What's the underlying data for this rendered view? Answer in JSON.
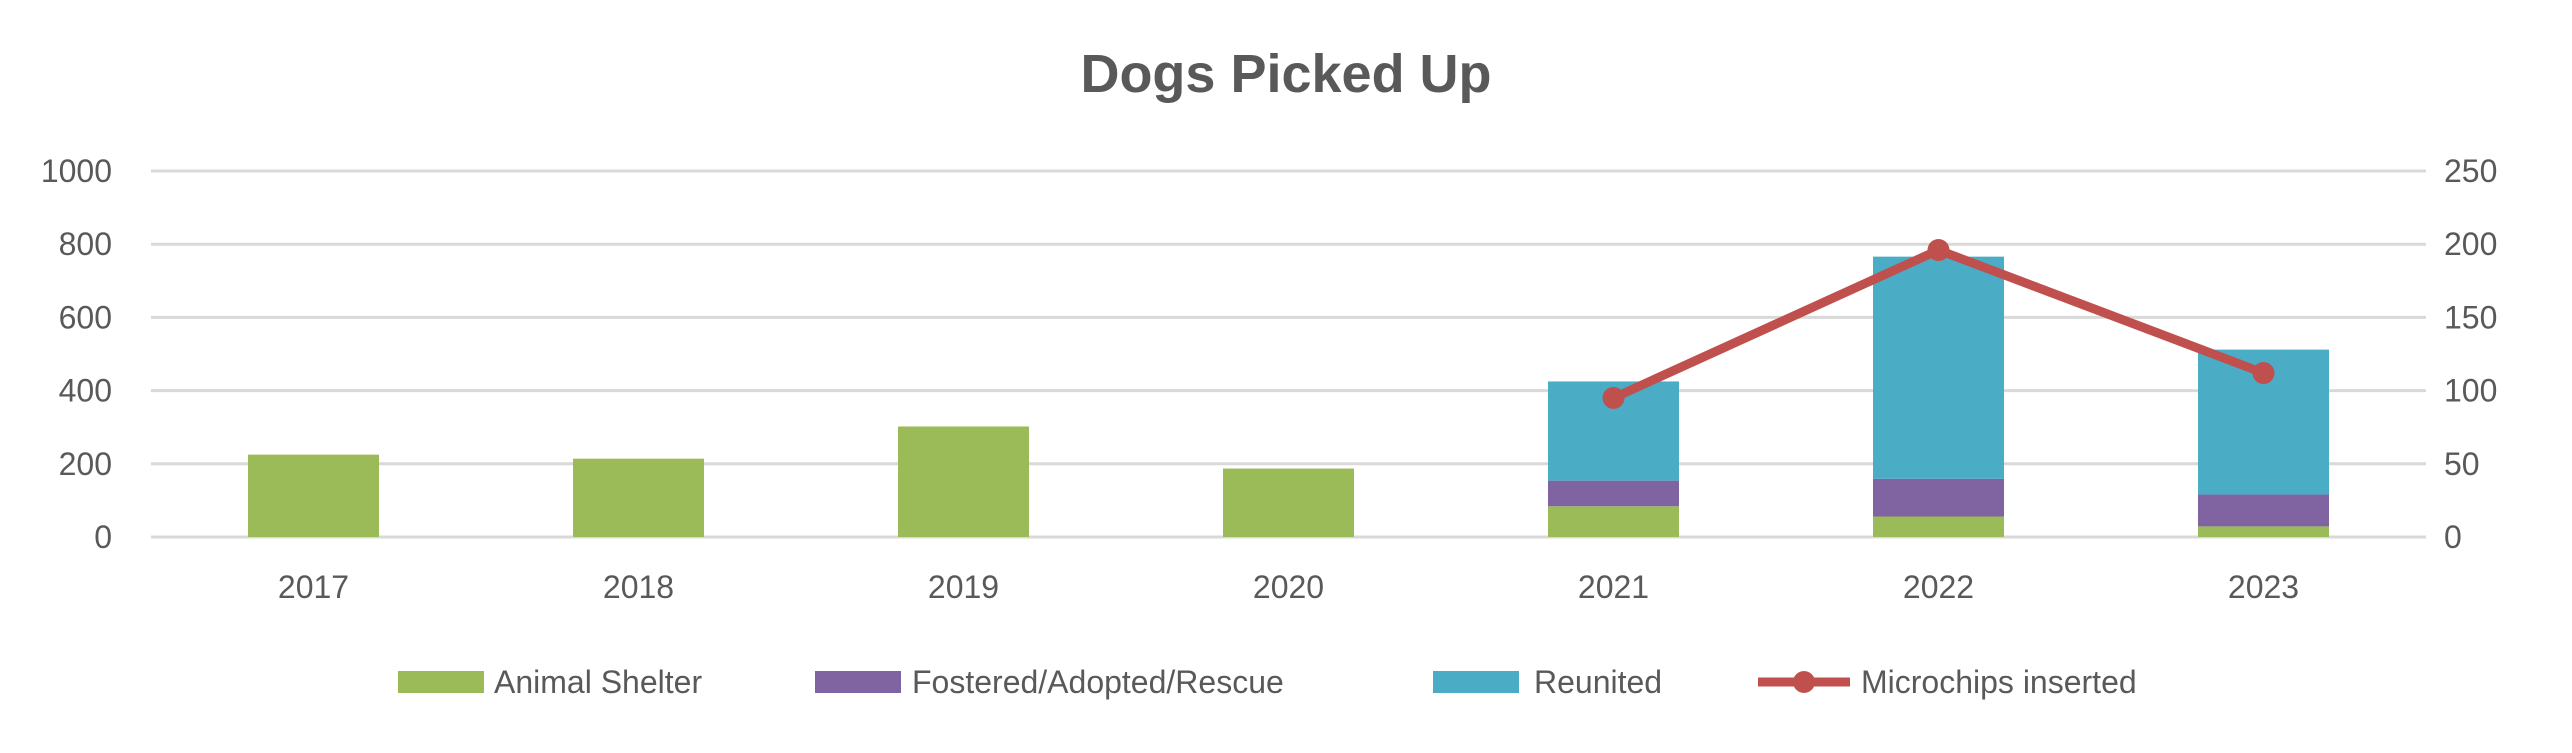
{
  "chart_data": {
    "type": "bar",
    "stacked": true,
    "title": "Dogs Picked Up",
    "categories": [
      "2017",
      "2018",
      "2019",
      "2020",
      "2021",
      "2022",
      "2023"
    ],
    "series": [
      {
        "name": "Animal Shelter",
        "type": "bar",
        "axis": "left",
        "color": "#9BBB59",
        "values": [
          225,
          214,
          302,
          187,
          84,
          56,
          29
        ]
      },
      {
        "name": "Fostered/Adopted/Rescue",
        "type": "bar",
        "axis": "left",
        "color": "#8064A2",
        "values": [
          0,
          0,
          0,
          0,
          70,
          103,
          87
        ]
      },
      {
        "name": "Reunited",
        "type": "bar",
        "axis": "left",
        "color": "#4BACC6",
        "values": [
          0,
          0,
          0,
          0,
          271,
          607,
          396
        ]
      },
      {
        "name": "Microchips inserted",
        "type": "line",
        "axis": "right",
        "color": "#C0504D",
        "values": [
          null,
          null,
          null,
          null,
          95,
          196,
          112
        ]
      }
    ],
    "y_left": {
      "min": 0,
      "max": 1000,
      "ticks": [
        "0",
        "200",
        "400",
        "600",
        "800",
        "1000"
      ]
    },
    "y_right": {
      "min": 0,
      "max": 250,
      "ticks": [
        "0",
        "50",
        "100",
        "150",
        "200",
        "250"
      ]
    },
    "grid": true,
    "legend_position": "bottom"
  }
}
